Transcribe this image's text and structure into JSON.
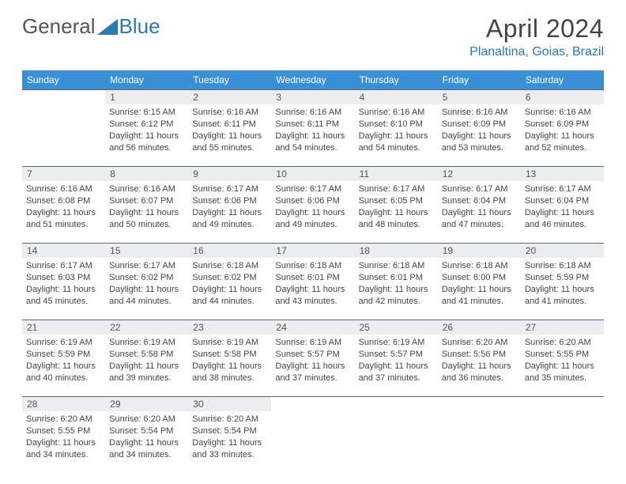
{
  "logo": {
    "text_left": "General",
    "text_right": "Blue"
  },
  "title": "April 2024",
  "location": "Planaltina, Goias, Brazil",
  "colors": {
    "header_bar": "#3b8fd4",
    "day_num_bg": "#ebedef",
    "rule": "#5a6a7a",
    "accent": "#2a7ab0",
    "text": "#444444"
  },
  "days_of_week": [
    "Sunday",
    "Monday",
    "Tuesday",
    "Wednesday",
    "Thursday",
    "Friday",
    "Saturday"
  ],
  "weeks": [
    {
      "nums": [
        "",
        "1",
        "2",
        "3",
        "4",
        "5",
        "6"
      ],
      "cells": [
        {
          "empty": true
        },
        {
          "sunrise": "Sunrise: 6:15 AM",
          "sunset": "Sunset: 6:12 PM",
          "daylight1": "Daylight: 11 hours",
          "daylight2": "and 56 minutes."
        },
        {
          "sunrise": "Sunrise: 6:16 AM",
          "sunset": "Sunset: 6:11 PM",
          "daylight1": "Daylight: 11 hours",
          "daylight2": "and 55 minutes."
        },
        {
          "sunrise": "Sunrise: 6:16 AM",
          "sunset": "Sunset: 6:11 PM",
          "daylight1": "Daylight: 11 hours",
          "daylight2": "and 54 minutes."
        },
        {
          "sunrise": "Sunrise: 6:16 AM",
          "sunset": "Sunset: 6:10 PM",
          "daylight1": "Daylight: 11 hours",
          "daylight2": "and 54 minutes."
        },
        {
          "sunrise": "Sunrise: 6:16 AM",
          "sunset": "Sunset: 6:09 PM",
          "daylight1": "Daylight: 11 hours",
          "daylight2": "and 53 minutes."
        },
        {
          "sunrise": "Sunrise: 6:16 AM",
          "sunset": "Sunset: 6:09 PM",
          "daylight1": "Daylight: 11 hours",
          "daylight2": "and 52 minutes."
        }
      ]
    },
    {
      "nums": [
        "7",
        "8",
        "9",
        "10",
        "11",
        "12",
        "13"
      ],
      "cells": [
        {
          "sunrise": "Sunrise: 6:16 AM",
          "sunset": "Sunset: 6:08 PM",
          "daylight1": "Daylight: 11 hours",
          "daylight2": "and 51 minutes."
        },
        {
          "sunrise": "Sunrise: 6:16 AM",
          "sunset": "Sunset: 6:07 PM",
          "daylight1": "Daylight: 11 hours",
          "daylight2": "and 50 minutes."
        },
        {
          "sunrise": "Sunrise: 6:17 AM",
          "sunset": "Sunset: 6:06 PM",
          "daylight1": "Daylight: 11 hours",
          "daylight2": "and 49 minutes."
        },
        {
          "sunrise": "Sunrise: 6:17 AM",
          "sunset": "Sunset: 6:06 PM",
          "daylight1": "Daylight: 11 hours",
          "daylight2": "and 49 minutes."
        },
        {
          "sunrise": "Sunrise: 6:17 AM",
          "sunset": "Sunset: 6:05 PM",
          "daylight1": "Daylight: 11 hours",
          "daylight2": "and 48 minutes."
        },
        {
          "sunrise": "Sunrise: 6:17 AM",
          "sunset": "Sunset: 6:04 PM",
          "daylight1": "Daylight: 11 hours",
          "daylight2": "and 47 minutes."
        },
        {
          "sunrise": "Sunrise: 6:17 AM",
          "sunset": "Sunset: 6:04 PM",
          "daylight1": "Daylight: 11 hours",
          "daylight2": "and 46 minutes."
        }
      ]
    },
    {
      "nums": [
        "14",
        "15",
        "16",
        "17",
        "18",
        "19",
        "20"
      ],
      "cells": [
        {
          "sunrise": "Sunrise: 6:17 AM",
          "sunset": "Sunset: 6:03 PM",
          "daylight1": "Daylight: 11 hours",
          "daylight2": "and 45 minutes."
        },
        {
          "sunrise": "Sunrise: 6:17 AM",
          "sunset": "Sunset: 6:02 PM",
          "daylight1": "Daylight: 11 hours",
          "daylight2": "and 44 minutes."
        },
        {
          "sunrise": "Sunrise: 6:18 AM",
          "sunset": "Sunset: 6:02 PM",
          "daylight1": "Daylight: 11 hours",
          "daylight2": "and 44 minutes."
        },
        {
          "sunrise": "Sunrise: 6:18 AM",
          "sunset": "Sunset: 6:01 PM",
          "daylight1": "Daylight: 11 hours",
          "daylight2": "and 43 minutes."
        },
        {
          "sunrise": "Sunrise: 6:18 AM",
          "sunset": "Sunset: 6:01 PM",
          "daylight1": "Daylight: 11 hours",
          "daylight2": "and 42 minutes."
        },
        {
          "sunrise": "Sunrise: 6:18 AM",
          "sunset": "Sunset: 6:00 PM",
          "daylight1": "Daylight: 11 hours",
          "daylight2": "and 41 minutes."
        },
        {
          "sunrise": "Sunrise: 6:18 AM",
          "sunset": "Sunset: 5:59 PM",
          "daylight1": "Daylight: 11 hours",
          "daylight2": "and 41 minutes."
        }
      ]
    },
    {
      "nums": [
        "21",
        "22",
        "23",
        "24",
        "25",
        "26",
        "27"
      ],
      "cells": [
        {
          "sunrise": "Sunrise: 6:19 AM",
          "sunset": "Sunset: 5:59 PM",
          "daylight1": "Daylight: 11 hours",
          "daylight2": "and 40 minutes."
        },
        {
          "sunrise": "Sunrise: 6:19 AM",
          "sunset": "Sunset: 5:58 PM",
          "daylight1": "Daylight: 11 hours",
          "daylight2": "and 39 minutes."
        },
        {
          "sunrise": "Sunrise: 6:19 AM",
          "sunset": "Sunset: 5:58 PM",
          "daylight1": "Daylight: 11 hours",
          "daylight2": "and 38 minutes."
        },
        {
          "sunrise": "Sunrise: 6:19 AM",
          "sunset": "Sunset: 5:57 PM",
          "daylight1": "Daylight: 11 hours",
          "daylight2": "and 37 minutes."
        },
        {
          "sunrise": "Sunrise: 6:19 AM",
          "sunset": "Sunset: 5:57 PM",
          "daylight1": "Daylight: 11 hours",
          "daylight2": "and 37 minutes."
        },
        {
          "sunrise": "Sunrise: 6:20 AM",
          "sunset": "Sunset: 5:56 PM",
          "daylight1": "Daylight: 11 hours",
          "daylight2": "and 36 minutes."
        },
        {
          "sunrise": "Sunrise: 6:20 AM",
          "sunset": "Sunset: 5:55 PM",
          "daylight1": "Daylight: 11 hours",
          "daylight2": "and 35 minutes."
        }
      ]
    },
    {
      "nums": [
        "28",
        "29",
        "30",
        "",
        "",
        "",
        ""
      ],
      "cells": [
        {
          "sunrise": "Sunrise: 6:20 AM",
          "sunset": "Sunset: 5:55 PM",
          "daylight1": "Daylight: 11 hours",
          "daylight2": "and 34 minutes."
        },
        {
          "sunrise": "Sunrise: 6:20 AM",
          "sunset": "Sunset: 5:54 PM",
          "daylight1": "Daylight: 11 hours",
          "daylight2": "and 34 minutes."
        },
        {
          "sunrise": "Sunrise: 6:20 AM",
          "sunset": "Sunset: 5:54 PM",
          "daylight1": "Daylight: 11 hours",
          "daylight2": "and 33 minutes."
        },
        {
          "empty": true
        },
        {
          "empty": true
        },
        {
          "empty": true
        },
        {
          "empty": true
        }
      ]
    }
  ]
}
